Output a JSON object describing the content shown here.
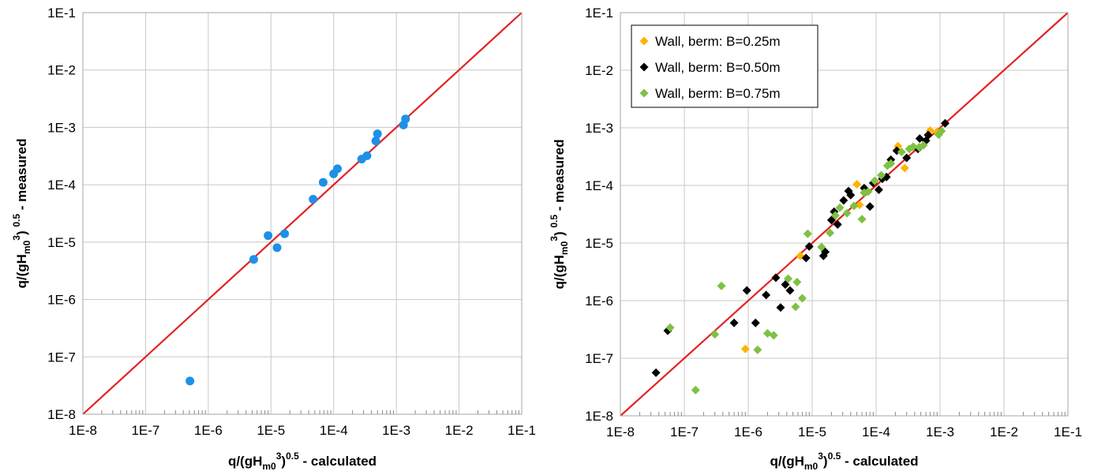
{
  "chart_data": [
    {
      "type": "scatter",
      "xscale": "log",
      "yscale": "log",
      "xlim": [
        1e-08,
        0.1
      ],
      "ylim": [
        1e-08,
        0.1
      ],
      "grid": true,
      "legend": null,
      "x_ticks": [
        "1E-8",
        "1E-7",
        "1E-6",
        "1E-5",
        "1E-4",
        "1E-3",
        "1E-2",
        "1E-1"
      ],
      "y_ticks": [
        "1E-8",
        "1E-7",
        "1E-6",
        "1E-5",
        "1E-4",
        "1E-3",
        "1E-2",
        "1E-1"
      ],
      "xlabel": {
        "base": "q/(gH",
        "sub": "m0",
        "sup1": "3",
        "mid": ")",
        "sup2": "0.5",
        "tail": " - calculated"
      },
      "ylabel": {
        "base": "q/(gH",
        "sub": "m0",
        "sup1": "3",
        "mid": ") ",
        "sup2": "0.5",
        "tail": " - measured"
      },
      "reference_line": {
        "label": "",
        "color": "#e32222"
      },
      "series": [
        {
          "marker": "circle",
          "color": "#1e90e6",
          "points": [
            [
              5.1e-07,
              3.8e-08
            ],
            [
              5.3e-06,
              5e-06
            ],
            [
              9e-06,
              1.3e-05
            ],
            [
              1.25e-05,
              8e-06
            ],
            [
              1.65e-05,
              1.4e-05
            ],
            [
              4.7e-05,
              5.6e-05
            ],
            [
              6.8e-05,
              0.00011
            ],
            [
              0.0001,
              0.000155
            ],
            [
              0.000115,
              0.00019
            ],
            [
              0.00028,
              0.00028
            ],
            [
              0.00034,
              0.00032
            ],
            [
              0.00047,
              0.00058
            ],
            [
              0.0005,
              0.00077
            ],
            [
              0.0013,
              0.0011
            ],
            [
              0.0014,
              0.0014
            ]
          ]
        }
      ]
    },
    {
      "type": "scatter",
      "xscale": "log",
      "yscale": "log",
      "xlim": [
        1e-08,
        0.1
      ],
      "ylim": [
        1e-08,
        0.1
      ],
      "grid": true,
      "legend": "top-left",
      "x_ticks": [
        "1E-8",
        "1E-7",
        "1E-6",
        "1E-5",
        "1E-4",
        "1E-3",
        "1E-2",
        "1E-1"
      ],
      "y_ticks": [
        "1E-8",
        "1E-7",
        "1E-6",
        "1E-5",
        "1E-4",
        "1E-3",
        "1E-2",
        "1E-1"
      ],
      "xlabel": {
        "base": "q/(gH",
        "sub": "m0",
        "sup1": "3",
        "mid": ")",
        "sup2": "0.5",
        "tail": " - calculated"
      },
      "ylabel": {
        "base": "q/(gH",
        "sub": "m0",
        "sup1": "3",
        "mid": ") ",
        "sup2": "0.5",
        "tail": " - measured"
      },
      "reference_line": {
        "label": "",
        "color": "#e32222"
      },
      "series": [
        {
          "name": "Wall, berm: B=0.25m",
          "marker": "diamond",
          "color": "#ffb300",
          "points": [
            [
              9e-07,
              1.45e-07
            ],
            [
              6.5e-06,
              6e-06
            ],
            [
              5e-05,
              0.000105
            ],
            [
              5.5e-05,
              4.6e-05
            ],
            [
              0.00022,
              0.00048
            ],
            [
              0.00028,
              0.0002
            ],
            [
              0.0007,
              0.0009
            ],
            [
              0.0009,
              0.00085
            ]
          ]
        },
        {
          "name": "Wall, berm: B=0.50m",
          "marker": "diamond",
          "color": "#000000",
          "points": [
            [
              3.6e-08,
              5.6e-08
            ],
            [
              5.5e-08,
              3e-07
            ],
            [
              6e-07,
              4.1e-07
            ],
            [
              9.5e-07,
              1.5e-06
            ],
            [
              1.3e-06,
              4.1e-07
            ],
            [
              1.9e-06,
              1.25e-06
            ],
            [
              2.7e-06,
              2.5e-06
            ],
            [
              3.2e-06,
              7.6e-07
            ],
            [
              3.8e-06,
              1.9e-06
            ],
            [
              4.5e-06,
              1.5e-06
            ],
            [
              8e-06,
              5.5e-06
            ],
            [
              9e-06,
              8.7e-06
            ],
            [
              1.5e-05,
              6e-06
            ],
            [
              1.6e-05,
              7e-06
            ],
            [
              2e-05,
              2.5e-05
            ],
            [
              2.5e-05,
              2.1e-05
            ],
            [
              2.2e-05,
              3.5e-05
            ],
            [
              3.1e-05,
              5.5e-05
            ],
            [
              3.7e-05,
              8e-05
            ],
            [
              4e-05,
              6.8e-05
            ],
            [
              6.5e-05,
              9e-05
            ],
            [
              8e-05,
              4.3e-05
            ],
            [
              9e-05,
              0.00011
            ],
            [
              0.00011,
              8.4e-05
            ],
            [
              0.000125,
              0.00013
            ],
            [
              0.000145,
              0.00014
            ],
            [
              0.00017,
              0.00028
            ],
            [
              0.00021,
              0.0004
            ],
            [
              0.0003,
              0.0003
            ],
            [
              0.00045,
              0.00043
            ],
            [
              0.00048,
              0.00065
            ],
            [
              0.0006,
              0.0006
            ],
            [
              0.00065,
              0.00075
            ],
            [
              0.0012,
              0.0012
            ]
          ]
        },
        {
          "name": "Wall, berm: B=0.75m",
          "marker": "diamond",
          "color": "#7dc242",
          "points": [
            [
              6e-08,
              3.4e-07
            ],
            [
              1.5e-07,
              2.8e-08
            ],
            [
              3e-07,
              2.6e-07
            ],
            [
              3.8e-07,
              1.8e-06
            ],
            [
              1.4e-06,
              1.4e-07
            ],
            [
              2e-06,
              2.7e-07
            ],
            [
              2.5e-06,
              2.5e-07
            ],
            [
              4.2e-06,
              2.4e-06
            ],
            [
              5.5e-06,
              7.8e-07
            ],
            [
              5.8e-06,
              2.1e-06
            ],
            [
              7e-06,
              1.1e-06
            ],
            [
              8.5e-06,
              1.45e-05
            ],
            [
              1.4e-05,
              8.5e-06
            ],
            [
              1.9e-05,
              1.5e-05
            ],
            [
              2.3e-05,
              3e-05
            ],
            [
              2.7e-05,
              4.1e-05
            ],
            [
              3.5e-05,
              3.3e-05
            ],
            [
              4.5e-05,
              4.4e-05
            ],
            [
              6e-05,
              2.6e-05
            ],
            [
              6.5e-05,
              7.5e-05
            ],
            [
              7.5e-05,
              7.8e-05
            ],
            [
              9.5e-05,
              0.00012
            ],
            [
              0.00012,
              0.00015
            ],
            [
              0.00015,
              0.00022
            ],
            [
              0.00017,
              0.00024
            ],
            [
              0.00025,
              0.00038
            ],
            [
              0.00033,
              0.00043
            ],
            [
              0.00038,
              0.00047
            ],
            [
              0.00047,
              0.00046
            ],
            [
              0.00055,
              0.0005
            ],
            [
              0.00095,
              0.00076
            ],
            [
              0.00105,
              0.00088
            ]
          ]
        }
      ]
    }
  ]
}
